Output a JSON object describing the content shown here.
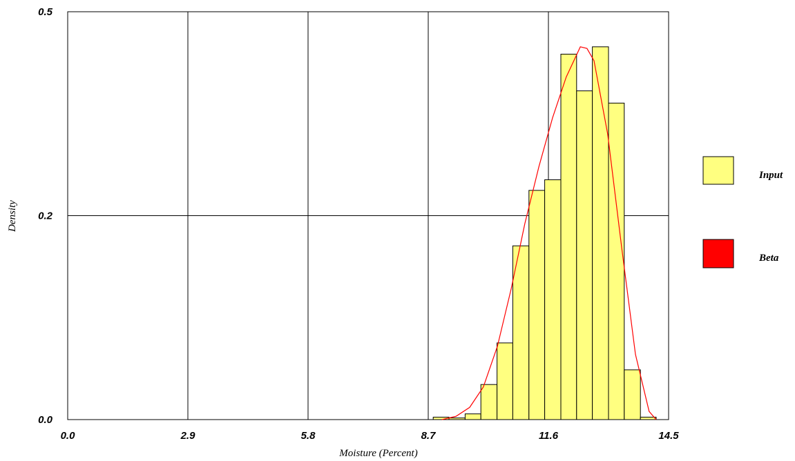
{
  "chart_data": {
    "type": "histogram",
    "x_label": "Moisture (Percent)",
    "y_label": "Density",
    "xlim": [
      0,
      14.5
    ],
    "xticks": [
      {
        "value": 0,
        "label": "0.0"
      },
      2.9,
      5.8,
      8.7,
      11.6,
      14.5
    ],
    "ylim": [
      0,
      0.5
    ],
    "yticks": [
      {
        "value": 0,
        "label": "0.0"
      },
      {
        "value": 0.25,
        "label": "0.2"
      },
      0.5
    ],
    "grid": true,
    "series": [
      {
        "name": "Input",
        "type": "histogram",
        "color": "#ffff80",
        "bins": [
          8.82,
          9.2,
          9.59,
          9.97,
          10.36,
          10.74,
          11.13,
          11.51,
          11.9,
          12.28,
          12.66,
          13.05,
          13.43,
          13.82,
          14.2
        ],
        "values": [
          0.003,
          0.002,
          0.007,
          0.043,
          0.094,
          0.213,
          0.281,
          0.294,
          0.448,
          0.403,
          0.457,
          0.388,
          0.061,
          0.003
        ]
      },
      {
        "name": "Beta",
        "type": "line",
        "color": "#ff0000",
        "x": [
          9.03,
          9.37,
          9.7,
          10.03,
          10.37,
          10.7,
          11.03,
          11.37,
          11.7,
          12.03,
          12.37,
          12.53,
          12.7,
          13.03,
          13.37,
          13.7,
          14.03,
          14.2
        ],
        "values": [
          0,
          0.004,
          0.015,
          0.04,
          0.09,
          0.16,
          0.24,
          0.31,
          0.37,
          0.42,
          0.457,
          0.455,
          0.44,
          0.35,
          0.21,
          0.08,
          0.01,
          0
        ]
      }
    ]
  }
}
